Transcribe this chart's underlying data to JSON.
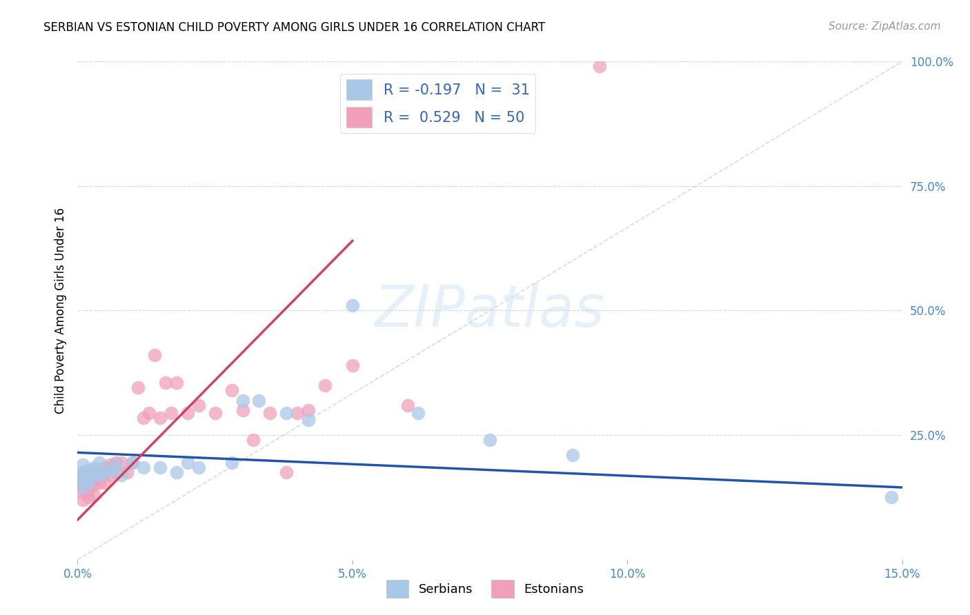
{
  "title": "SERBIAN VS ESTONIAN CHILD POVERTY AMONG GIRLS UNDER 16 CORRELATION CHART",
  "source": "Source: ZipAtlas.com",
  "ylabel": "Child Poverty Among Girls Under 16",
  "xlim": [
    0.0,
    0.15
  ],
  "ylim": [
    0.0,
    1.0
  ],
  "xticks": [
    0.0,
    0.05,
    0.1,
    0.15
  ],
  "xticklabels": [
    "0.0%",
    "5.0%",
    "10.0%",
    "15.0%"
  ],
  "yticks_right": [
    0.25,
    0.5,
    0.75,
    1.0
  ],
  "yticklabels_right": [
    "25.0%",
    "50.0%",
    "75.0%",
    "100.0%"
  ],
  "watermark": "ZIPatlas",
  "legend_r_serbian": "-0.197",
  "legend_n_serbian": "31",
  "legend_r_estonian": "0.529",
  "legend_n_estonian": "50",
  "serbian_color": "#a8c8e8",
  "estonian_color": "#f0a0b8",
  "serbian_line_color": "#2255aa",
  "estonian_line_color": "#cc4466",
  "diagonal_color": "#cccccc",
  "tick_color": "#4488cc",
  "serbian_x": [
    0.001,
    0.001,
    0.001,
    0.001,
    0.002,
    0.002,
    0.002,
    0.003,
    0.003,
    0.004,
    0.004,
    0.005,
    0.006,
    0.007,
    0.008,
    0.01,
    0.012,
    0.015,
    0.018,
    0.02,
    0.022,
    0.028,
    0.03,
    0.033,
    0.038,
    0.042,
    0.05,
    0.062,
    0.075,
    0.09,
    0.148
  ],
  "serbian_y": [
    0.175,
    0.19,
    0.16,
    0.145,
    0.18,
    0.165,
    0.155,
    0.175,
    0.185,
    0.17,
    0.195,
    0.175,
    0.18,
    0.19,
    0.17,
    0.195,
    0.185,
    0.185,
    0.175,
    0.195,
    0.185,
    0.195,
    0.32,
    0.32,
    0.295,
    0.28,
    0.51,
    0.295,
    0.24,
    0.21,
    0.125
  ],
  "estonian_x": [
    0.001,
    0.001,
    0.001,
    0.001,
    0.001,
    0.001,
    0.002,
    0.002,
    0.002,
    0.002,
    0.002,
    0.003,
    0.003,
    0.003,
    0.003,
    0.003,
    0.004,
    0.004,
    0.005,
    0.005,
    0.005,
    0.006,
    0.006,
    0.007,
    0.007,
    0.008,
    0.009,
    0.01,
    0.011,
    0.012,
    0.013,
    0.014,
    0.015,
    0.016,
    0.017,
    0.018,
    0.02,
    0.022,
    0.025,
    0.028,
    0.03,
    0.032,
    0.035,
    0.038,
    0.04,
    0.042,
    0.045,
    0.05,
    0.06,
    0.095
  ],
  "estonian_y": [
    0.175,
    0.165,
    0.155,
    0.145,
    0.135,
    0.12,
    0.175,
    0.16,
    0.15,
    0.14,
    0.125,
    0.18,
    0.17,
    0.16,
    0.15,
    0.13,
    0.175,
    0.155,
    0.185,
    0.175,
    0.155,
    0.19,
    0.17,
    0.195,
    0.175,
    0.195,
    0.175,
    0.195,
    0.345,
    0.285,
    0.295,
    0.41,
    0.285,
    0.355,
    0.295,
    0.355,
    0.295,
    0.31,
    0.295,
    0.34,
    0.3,
    0.24,
    0.295,
    0.175,
    0.295,
    0.3,
    0.35,
    0.39,
    0.31,
    0.99
  ],
  "estonian_line_x": [
    0.0,
    0.05
  ],
  "estonian_line_y": [
    0.08,
    0.64
  ],
  "serbian_line_x": [
    0.0,
    0.15
  ],
  "serbian_line_y": [
    0.215,
    0.145
  ]
}
